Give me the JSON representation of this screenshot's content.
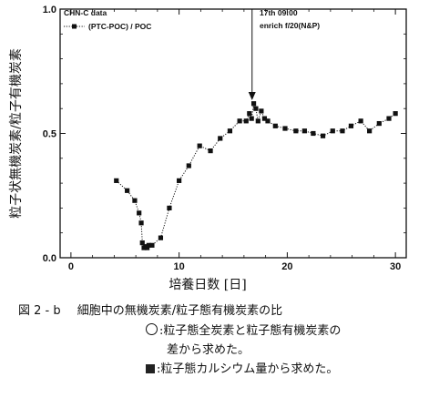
{
  "chart_data": {
    "type": "scatter",
    "ylabel": "粒子状無機炭素/粒子有機炭素",
    "xlabel": "培養日数 [日]",
    "xlim": [
      -1,
      31
    ],
    "ylim": [
      0,
      1
    ],
    "x_ticks": [
      0,
      10,
      20,
      30
    ],
    "y_ticks": [
      0.0,
      0.5,
      1.0
    ],
    "y_tick_labels": [
      "0.0",
      "0.5",
      "1.0"
    ],
    "legend": {
      "dataset": "CHN-C data",
      "series_label": "(PTC-POC) / POC",
      "position": "top-left"
    },
    "annotation": {
      "line1": "17th 09:00",
      "line2": "enrich f/20(N&P)",
      "x": 17,
      "y": 0.63
    },
    "series": [
      {
        "name": "(PTC-POC) / POC",
        "marker": "filled-square",
        "line": "dotted",
        "points": [
          [
            4.2,
            0.31
          ],
          [
            5.2,
            0.27
          ],
          [
            5.9,
            0.23
          ],
          [
            6.3,
            0.18
          ],
          [
            6.5,
            0.14
          ],
          [
            6.6,
            0.06
          ],
          [
            6.75,
            0.04
          ],
          [
            6.9,
            0.045
          ],
          [
            7.05,
            0.04
          ],
          [
            7.2,
            0.05
          ],
          [
            7.5,
            0.05
          ],
          [
            8.3,
            0.08
          ],
          [
            9.1,
            0.2
          ],
          [
            10.0,
            0.31
          ],
          [
            10.9,
            0.37
          ],
          [
            11.9,
            0.45
          ],
          [
            12.9,
            0.43
          ],
          [
            13.8,
            0.48
          ],
          [
            14.7,
            0.51
          ],
          [
            15.6,
            0.55
          ],
          [
            16.2,
            0.55
          ],
          [
            16.5,
            0.58
          ],
          [
            16.7,
            0.56
          ],
          [
            16.9,
            0.62
          ],
          [
            17.1,
            0.6
          ],
          [
            17.3,
            0.55
          ],
          [
            17.6,
            0.59
          ],
          [
            17.9,
            0.56
          ],
          [
            18.2,
            0.55
          ],
          [
            18.9,
            0.53
          ],
          [
            19.8,
            0.52
          ],
          [
            20.8,
            0.51
          ],
          [
            21.6,
            0.51
          ],
          [
            22.4,
            0.5
          ],
          [
            23.3,
            0.49
          ],
          [
            24.2,
            0.51
          ],
          [
            25.1,
            0.51
          ],
          [
            25.9,
            0.53
          ],
          [
            26.8,
            0.55
          ],
          [
            27.6,
            0.51
          ],
          [
            28.5,
            0.54
          ],
          [
            29.4,
            0.56
          ],
          [
            30.0,
            0.58
          ]
        ]
      }
    ]
  },
  "caption": {
    "figure_number": "図 2 - b",
    "title": "細胞中の無機炭素/粒子態有機炭素の比",
    "circle_note_1": ":粒子態全炭素と粒子態有機炭素の",
    "circle_note_2": "差から求めた。",
    "square_note": ":粒子態カルシウム量から求めた。"
  }
}
